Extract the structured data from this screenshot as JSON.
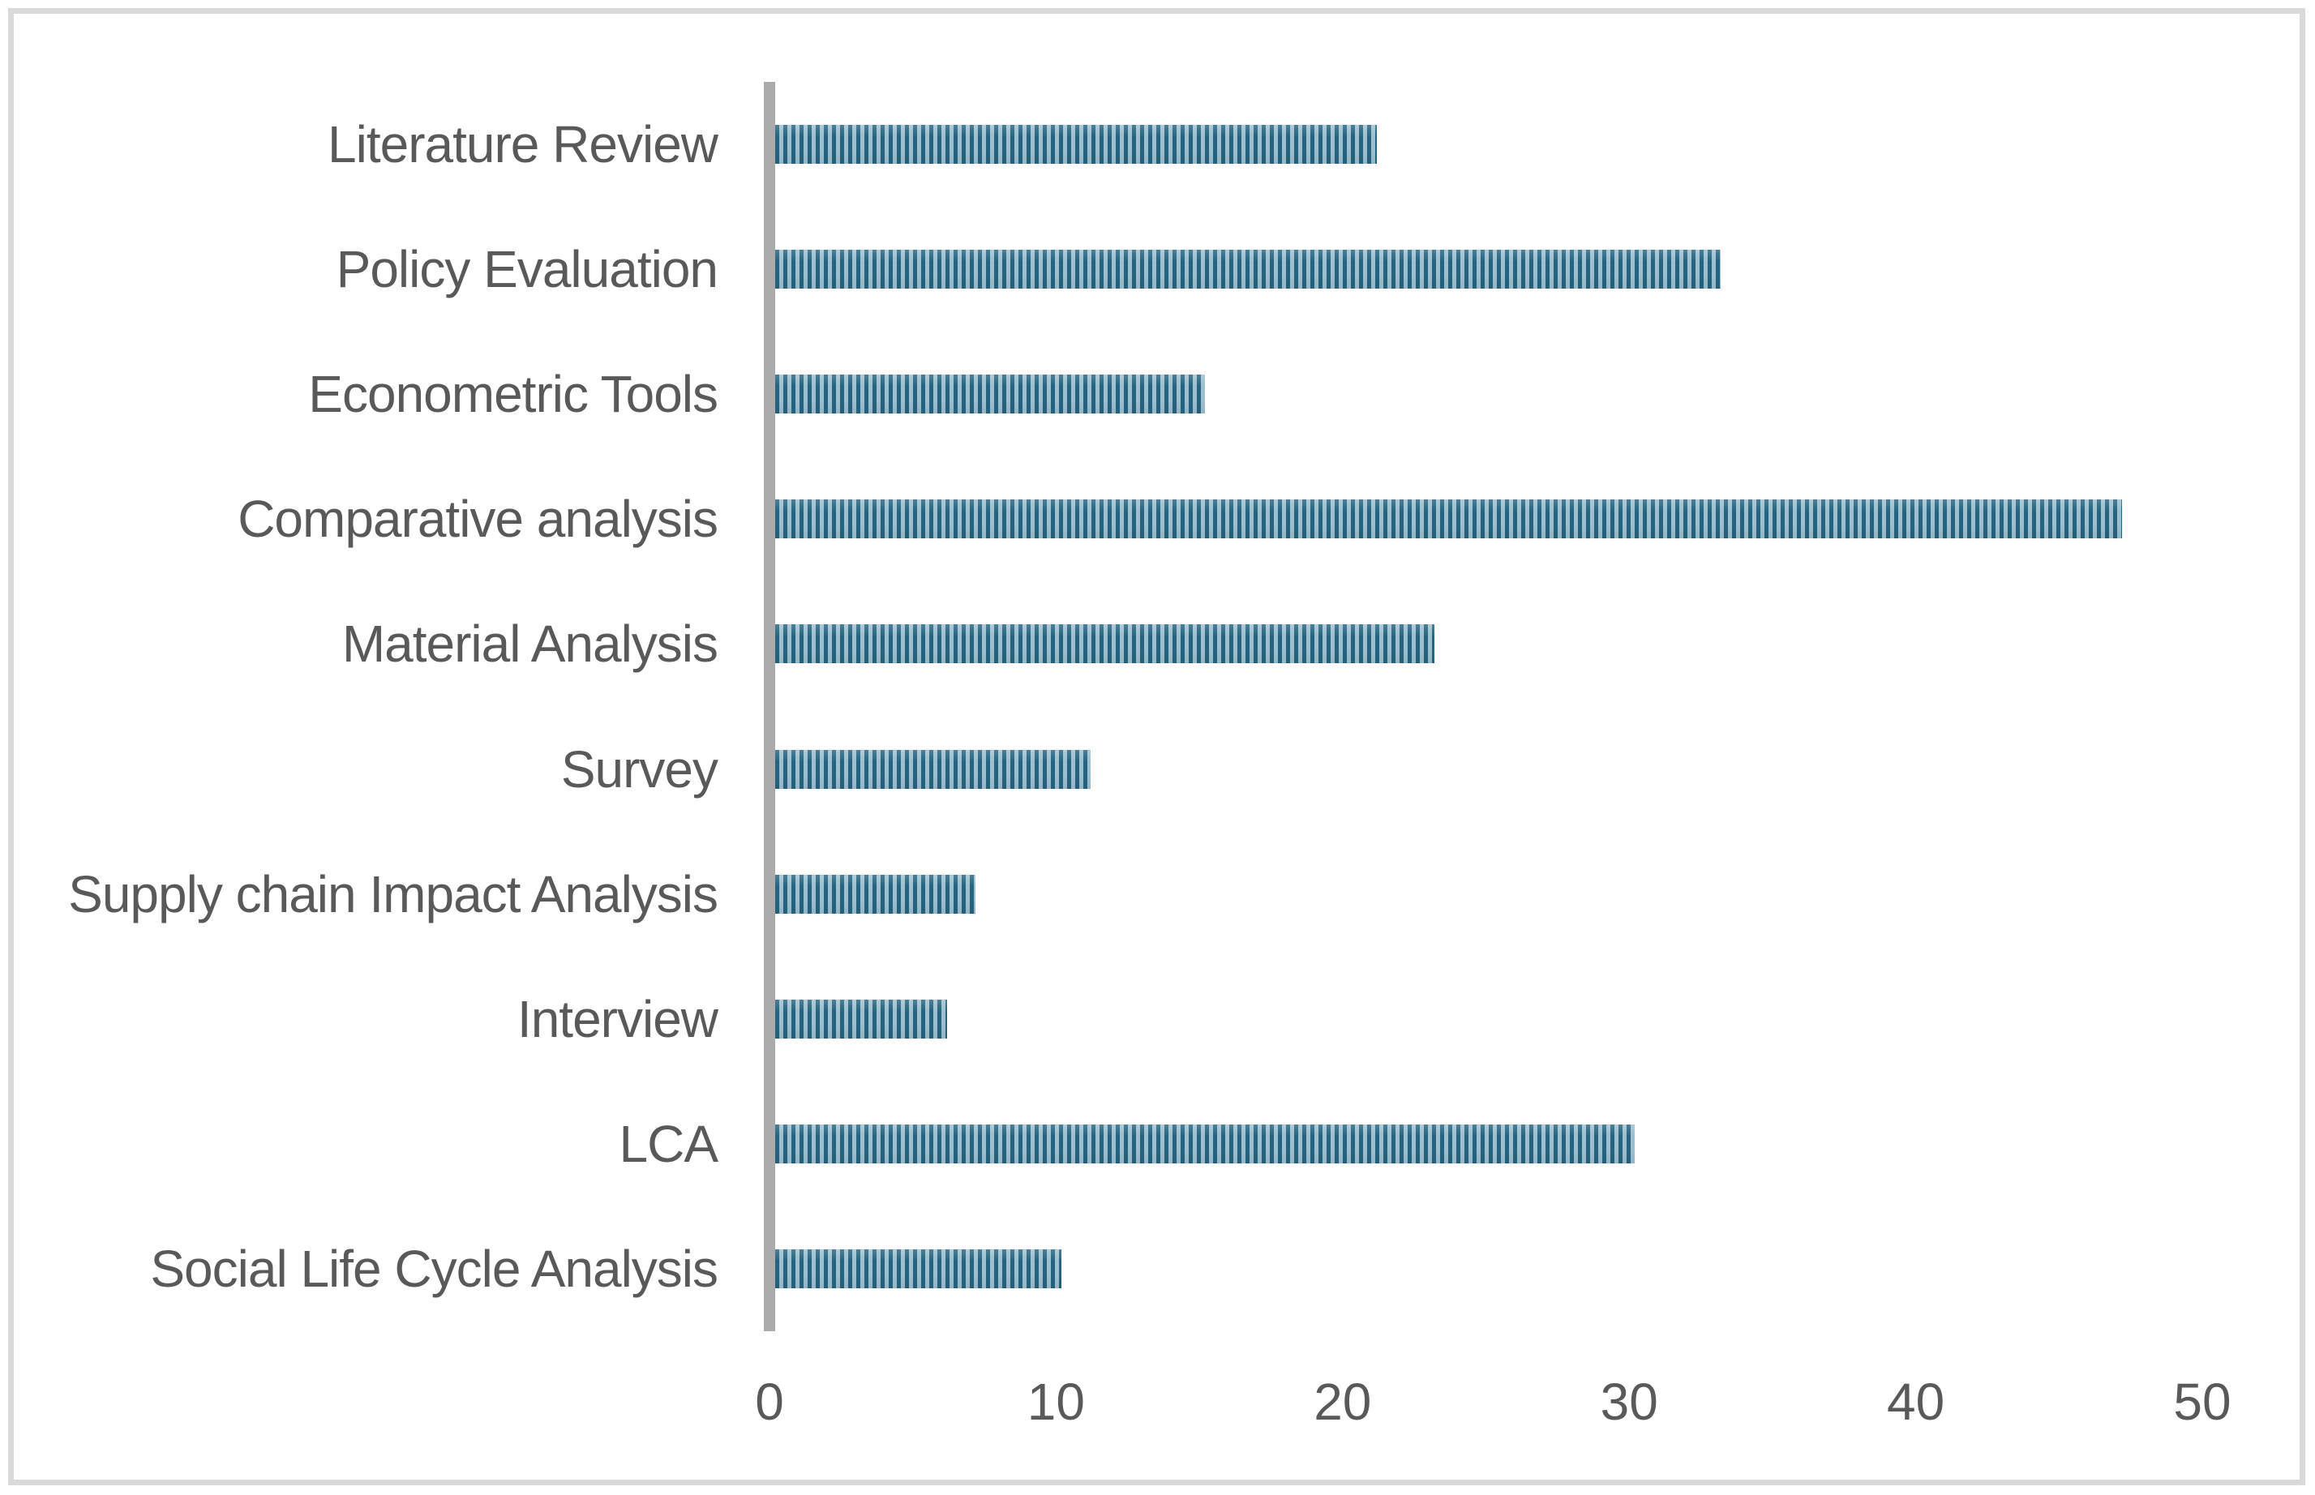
{
  "chart_data": {
    "type": "bar",
    "orientation": "horizontal",
    "title": "",
    "xlabel": "",
    "ylabel": "",
    "categories": [
      "Literature Review",
      "Policy Evaluation",
      "Econometric Tools",
      "Comparative analysis",
      "Material Analysis",
      "Survey",
      "Supply chain Impact Analysis",
      "Interview",
      "LCA",
      "Social Life Cycle Analysis"
    ],
    "values": [
      21,
      33,
      15,
      47,
      23,
      11,
      7,
      6,
      30,
      10
    ],
    "xticks": [
      0,
      10,
      20,
      30,
      40,
      50
    ],
    "xlim": [
      0,
      50
    ],
    "grid": false,
    "legend": false,
    "bar_pattern": "vertical-stripes",
    "colors": {
      "bar_stripe_dark": "#256480",
      "bar_stripe_light": "#9dbfcf",
      "axis_line": "#ababab",
      "tick_text": "#595959",
      "label_text": "#595959",
      "frame_border": "#d9d9d9",
      "background": "#ffffff"
    }
  }
}
